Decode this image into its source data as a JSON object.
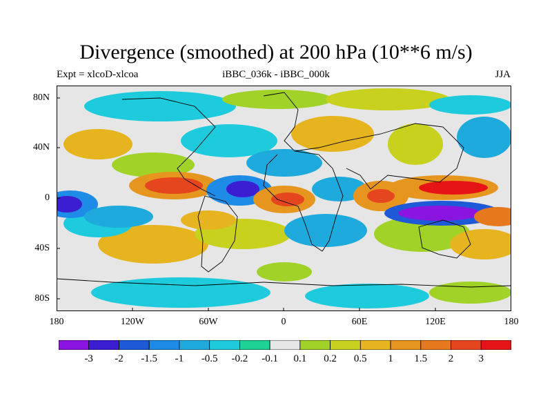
{
  "header": {
    "title": "Divergence (smoothed) at 200 hPa (10**6 m/s)",
    "left_label": "Expt = xlcoD-xlcoa",
    "center_label": "iBBC_036k - iBBC_000k",
    "right_label": "JJA"
  },
  "axes": {
    "y_ticks": [
      "80N",
      "40N",
      "0",
      "40S",
      "80S"
    ],
    "x_ticks": [
      "180",
      "120W",
      "60W",
      "0",
      "60E",
      "120E",
      "180"
    ]
  },
  "colorbar": {
    "labels": [
      "-3",
      "-2",
      "-1.5",
      "-1",
      "-0.5",
      "-0.2",
      "-0.1",
      "0.1",
      "0.2",
      "0.5",
      "1",
      "1.5",
      "2",
      "3"
    ],
    "colors": [
      "#8a14e0",
      "#3c1ed2",
      "#1e5ad7",
      "#1e8ce6",
      "#1eaadc",
      "#1ecbdc",
      "#1ed296",
      "#e6e6e6",
      "#a0d228",
      "#c8d21e",
      "#e6b41e",
      "#e6961e",
      "#e6781e",
      "#e6461e",
      "#e61414"
    ]
  },
  "field_features": [
    {
      "name": "eastern-pacific-convergence",
      "sign": "negative",
      "level": "-1.5"
    },
    {
      "name": "maritime-continent-convergence",
      "sign": "negative",
      "level": "-3"
    },
    {
      "name": "west-pacific-divergence",
      "sign": "positive",
      "level": "3"
    },
    {
      "name": "central-america-divergence",
      "sign": "positive",
      "level": "2"
    },
    {
      "name": "west-africa-divergence",
      "sign": "positive",
      "level": "2"
    },
    {
      "name": "indian-ocean-divergence",
      "sign": "positive",
      "level": "2"
    }
  ]
}
